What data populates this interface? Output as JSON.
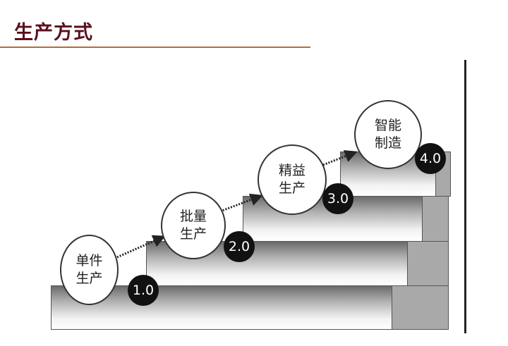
{
  "title": "生产方式",
  "stages": [
    {
      "line1": "单件",
      "line2": "生产",
      "version": "1.0"
    },
    {
      "line1": "批量",
      "line2": "生产",
      "version": "2.0"
    },
    {
      "line1": "精益",
      "line2": "生产",
      "version": "3.0"
    },
    {
      "line1": "智能",
      "line2": "制造",
      "version": "4.0"
    }
  ]
}
